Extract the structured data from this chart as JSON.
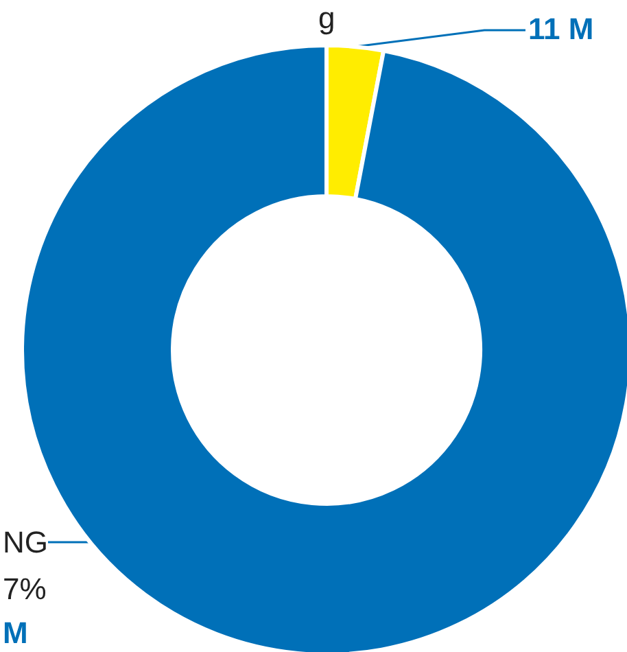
{
  "chart_data": {
    "type": "donut",
    "categories": [
      null,
      "NG"
    ],
    "values": [
      3,
      97
    ],
    "colors": [
      "#ffed00",
      "#0070b8"
    ],
    "annotations": [
      "g",
      "11 M",
      "7%",
      "M"
    ]
  }
}
